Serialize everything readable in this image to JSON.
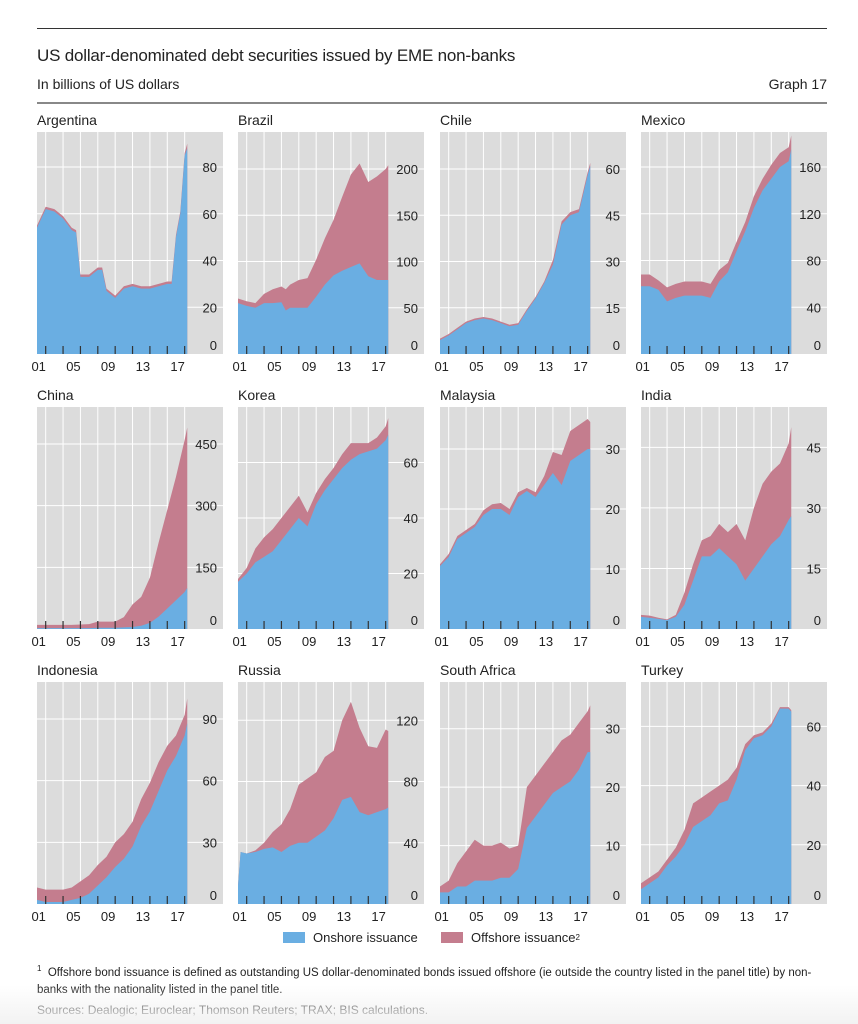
{
  "header": {
    "title": "US dollar-denominated debt securities issued by EME non-banks",
    "subtitle": "In billions of US dollars",
    "graph_number": "Graph 17"
  },
  "legend": {
    "onshore_label": "Onshore issuance",
    "offshore_label": "Offshore issuance",
    "offshore_sup": "2"
  },
  "colors": {
    "onshore": "#6aaee2",
    "offshore": "#c47d8e",
    "plot_bg": "#dcdcdc",
    "grid": "#ffffff"
  },
  "footnote": {
    "marker": "1",
    "text": "Offshore bond issuance is defined as outstanding US dollar-denominated bonds issued offshore (ie outside the country listed in the panel title) by non-banks with the nationality listed in the panel title."
  },
  "sources": "Sources: Dealogic; Euroclear; Thomson Reuters; TRAX; BIS calculations.",
  "chart_data": [
    {
      "type": "area",
      "title": "Argentina",
      "xlabel": "",
      "ylabel": "",
      "x_tick_labels": [
        "01",
        "05",
        "09",
        "13",
        "17"
      ],
      "y_ticks": [
        0,
        20,
        40,
        60,
        80
      ],
      "ylim": [
        0,
        95
      ],
      "x": [
        2000,
        2001,
        2002,
        2003,
        2004,
        2004.5,
        2005,
        2006,
        2007,
        2007.5,
        2008,
        2009,
        2010,
        2011,
        2012,
        2013,
        2014,
        2015,
        2015.5,
        2016,
        2016.5,
        2017,
        2017.3
      ],
      "series": [
        {
          "name": "Onshore issuance",
          "values": [
            54,
            62,
            61,
            58,
            53,
            52,
            33,
            33,
            36,
            36,
            27,
            24,
            28,
            29,
            28,
            28,
            29,
            30,
            30,
            50,
            60,
            85,
            88
          ]
        },
        {
          "name": "Offshore issuance",
          "values": [
            1,
            1,
            1,
            1,
            1,
            1,
            1,
            1,
            1,
            1,
            1,
            1,
            1,
            1,
            1,
            1,
            1,
            1,
            1,
            1,
            1,
            1,
            2
          ]
        }
      ]
    },
    {
      "type": "area",
      "title": "Brazil",
      "xlabel": "",
      "ylabel": "",
      "x_tick_labels": [
        "01",
        "05",
        "09",
        "13",
        "17"
      ],
      "y_ticks": [
        0,
        50,
        100,
        150,
        200
      ],
      "ylim": [
        0,
        240
      ],
      "x": [
        2000,
        2001,
        2002,
        2003,
        2004,
        2005,
        2005.5,
        2006,
        2007,
        2008,
        2009,
        2010,
        2011,
        2012,
        2013,
        2014,
        2015,
        2016,
        2017,
        2017.3
      ],
      "series": [
        {
          "name": "Onshore issuance",
          "values": [
            55,
            52,
            50,
            55,
            55,
            56,
            47,
            50,
            50,
            50,
            62,
            75,
            85,
            90,
            94,
            98,
            84,
            80,
            80,
            80
          ]
        },
        {
          "name": "Offshore issuance",
          "values": [
            5,
            5,
            5,
            10,
            15,
            17,
            23,
            25,
            30,
            32,
            40,
            50,
            60,
            80,
            100,
            108,
            102,
            112,
            120,
            124
          ]
        }
      ]
    },
    {
      "type": "area",
      "title": "Chile",
      "xlabel": "",
      "ylabel": "",
      "x_tick_labels": [
        "01",
        "05",
        "09",
        "13",
        "17"
      ],
      "y_ticks": [
        0,
        15,
        30,
        45,
        60
      ],
      "ylim": [
        0,
        72
      ],
      "x": [
        2000,
        2001,
        2002,
        2003,
        2004,
        2005,
        2006,
        2007,
        2008,
        2009,
        2010,
        2011,
        2012,
        2013,
        2014,
        2015,
        2016,
        2017,
        2017.3
      ],
      "series": [
        {
          "name": "Onshore issuance",
          "values": [
            4.5,
            6,
            8,
            10,
            11,
            11.5,
            11,
            10,
            9,
            9.5,
            14,
            18,
            23,
            29,
            42,
            45,
            46,
            58,
            61
          ]
        },
        {
          "name": "Offshore issuance",
          "values": [
            0.5,
            0.5,
            0.5,
            0.5,
            0.5,
            0.5,
            0.5,
            0.5,
            0.5,
            0.5,
            0.5,
            0.5,
            0.5,
            1.5,
            1,
            1,
            1,
            1,
            1
          ]
        }
      ]
    },
    {
      "type": "area",
      "title": "Mexico",
      "xlabel": "",
      "ylabel": "",
      "x_tick_labels": [
        "01",
        "05",
        "09",
        "13",
        "17"
      ],
      "y_ticks": [
        0,
        40,
        80,
        120,
        160
      ],
      "ylim": [
        0,
        190
      ],
      "x": [
        2000,
        2001,
        2002,
        2003,
        2004,
        2005,
        2006,
        2007,
        2008,
        2009,
        2010,
        2011,
        2012,
        2013,
        2014,
        2015,
        2016,
        2017,
        2017.3
      ],
      "series": [
        {
          "name": "Onshore issuance",
          "values": [
            58,
            58,
            55,
            45,
            48,
            50,
            50,
            50,
            48,
            62,
            70,
            88,
            105,
            125,
            140,
            150,
            160,
            165,
            175
          ]
        },
        {
          "name": "Offshore issuance",
          "values": [
            10,
            10,
            8,
            12,
            12,
            12,
            12,
            12,
            12,
            10,
            8,
            8,
            8,
            10,
            10,
            12,
            12,
            12,
            12
          ]
        }
      ]
    },
    {
      "type": "area",
      "title": "China",
      "xlabel": "",
      "ylabel": "",
      "x_tick_labels": [
        "01",
        "05",
        "09",
        "13",
        "17"
      ],
      "y_ticks": [
        0,
        150,
        300,
        450
      ],
      "ylim": [
        0,
        540
      ],
      "x": [
        2000,
        2001,
        2002,
        2003,
        2004,
        2005,
        2006,
        2007,
        2008,
        2009,
        2010,
        2011,
        2012,
        2013,
        2014,
        2015,
        2016,
        2017,
        2017.3
      ],
      "series": [
        {
          "name": "Onshore issuance",
          "values": [
            2,
            2,
            2,
            2,
            2,
            2,
            2,
            3,
            3,
            3,
            4,
            5,
            8,
            15,
            30,
            50,
            70,
            90,
            100
          ]
        },
        {
          "name": "Offshore issuance",
          "values": [
            8,
            8,
            8,
            8,
            8,
            9,
            10,
            15,
            15,
            15,
            25,
            55,
            70,
            110,
            180,
            240,
            300,
            370,
            390
          ]
        }
      ]
    },
    {
      "type": "area",
      "title": "Korea",
      "xlabel": "",
      "ylabel": "",
      "x_tick_labels": [
        "01",
        "05",
        "09",
        "13",
        "17"
      ],
      "y_ticks": [
        0,
        20,
        40,
        60
      ],
      "ylim": [
        0,
        80
      ],
      "x": [
        2000,
        2001,
        2002,
        2003,
        2004,
        2005,
        2006,
        2007,
        2008,
        2009,
        2010,
        2011,
        2012,
        2013,
        2014,
        2015,
        2016,
        2017,
        2017.3
      ],
      "series": [
        {
          "name": "Onshore issuance",
          "values": [
            17,
            20,
            24,
            26,
            28,
            32,
            36,
            40,
            37,
            45,
            50,
            54,
            58,
            61,
            63,
            64,
            65,
            68,
            70
          ]
        },
        {
          "name": "Offshore issuance",
          "values": [
            1,
            2,
            5,
            7,
            8,
            8,
            8,
            8,
            5,
            4,
            4,
            4,
            5,
            6,
            4,
            3,
            4,
            5,
            6
          ]
        }
      ]
    },
    {
      "type": "area",
      "title": "Malaysia",
      "xlabel": "",
      "ylabel": "",
      "x_tick_labels": [
        "01",
        "05",
        "09",
        "13",
        "17"
      ],
      "y_ticks": [
        0,
        10,
        20,
        30
      ],
      "ylim": [
        0,
        37
      ],
      "x": [
        2000,
        2001,
        2002,
        2003,
        2004,
        2005,
        2006,
        2007,
        2008,
        2009,
        2010,
        2011,
        2012,
        2013,
        2014,
        2015,
        2016,
        2017,
        2017.3
      ],
      "series": [
        {
          "name": "Onshore issuance",
          "values": [
            10.5,
            12,
            15,
            16,
            17,
            19,
            20,
            20,
            19,
            22,
            23,
            22,
            24,
            26,
            24,
            28,
            29,
            30,
            30
          ]
        },
        {
          "name": "Offshore issuance",
          "values": [
            0.3,
            0.5,
            0.5,
            0.5,
            0.5,
            0.8,
            0.8,
            1,
            1,
            0.8,
            0.5,
            0.8,
            1.5,
            3.5,
            5,
            5,
            5,
            5,
            4.5
          ]
        }
      ]
    },
    {
      "type": "area",
      "title": "India",
      "xlabel": "",
      "ylabel": "",
      "x_tick_labels": [
        "01",
        "05",
        "09",
        "13",
        "17"
      ],
      "y_ticks": [
        0,
        15,
        30,
        45
      ],
      "ylim": [
        0,
        55
      ],
      "x": [
        2000,
        2001,
        2002,
        2003,
        2004,
        2005,
        2006,
        2007,
        2008,
        2009,
        2010,
        2011,
        2012,
        2013,
        2014,
        2015,
        2016,
        2017,
        2017.3
      ],
      "series": [
        {
          "name": "Onshore issuance",
          "values": [
            3,
            2.8,
            2.5,
            2.2,
            3,
            6,
            12,
            18,
            18,
            20,
            18,
            16,
            12,
            15,
            18,
            21,
            23,
            27,
            28
          ]
        },
        {
          "name": "Offshore issuance",
          "values": [
            0.5,
            0.5,
            0.3,
            0.2,
            0.5,
            3,
            4,
            4,
            5,
            6,
            6,
            10,
            10,
            15,
            18,
            18,
            18,
            19,
            22
          ]
        }
      ]
    },
    {
      "type": "area",
      "title": "Indonesia",
      "xlabel": "",
      "ylabel": "",
      "x_tick_labels": [
        "01",
        "05",
        "09",
        "13",
        "17"
      ],
      "y_ticks": [
        0,
        30,
        60,
        90
      ],
      "ylim": [
        0,
        108
      ],
      "x": [
        2000,
        2001,
        2002,
        2003,
        2004,
        2005,
        2006,
        2007,
        2008,
        2009,
        2010,
        2011,
        2012,
        2013,
        2014,
        2015,
        2016,
        2017,
        2017.3
      ],
      "series": [
        {
          "name": "Onshore issuance",
          "values": [
            2,
            1,
            1,
            1,
            2,
            3,
            5,
            9,
            13,
            18,
            22,
            28,
            38,
            45,
            55,
            65,
            72,
            82,
            88
          ]
        },
        {
          "name": "Offshore issuance",
          "values": [
            6,
            6,
            6,
            6,
            6,
            8,
            9,
            10,
            10,
            12,
            12,
            12,
            13,
            14,
            14,
            12,
            10,
            10,
            12
          ]
        }
      ]
    },
    {
      "type": "area",
      "title": "Russia",
      "xlabel": "",
      "ylabel": "",
      "x_tick_labels": [
        "01",
        "05",
        "09",
        "13",
        "17"
      ],
      "y_ticks": [
        0,
        40,
        80,
        120
      ],
      "ylim": [
        0,
        145
      ],
      "x": [
        2000,
        2000.3,
        2001,
        2002,
        2003,
        2004,
        2005,
        2006,
        2007,
        2008,
        2009,
        2010,
        2011,
        2012,
        2013,
        2014,
        2015,
        2016,
        2017,
        2017.3
      ],
      "series": [
        {
          "name": "Onshore issuance",
          "values": [
            12,
            34,
            33,
            34,
            36,
            37,
            34,
            38,
            40,
            40,
            44,
            48,
            56,
            68,
            70,
            60,
            58,
            60,
            62,
            63
          ]
        },
        {
          "name": "Offshore issuance",
          "values": [
            0,
            0,
            0,
            1,
            4,
            10,
            18,
            24,
            38,
            42,
            42,
            48,
            44,
            52,
            62,
            55,
            45,
            42,
            52,
            50
          ]
        }
      ]
    },
    {
      "type": "area",
      "title": "South Africa",
      "xlabel": "",
      "ylabel": "",
      "x_tick_labels": [
        "01",
        "05",
        "09",
        "13",
        "17"
      ],
      "y_ticks": [
        0,
        10,
        20,
        30
      ],
      "ylim": [
        0,
        38
      ],
      "x": [
        2000,
        2001,
        2002,
        2003,
        2004,
        2005,
        2006,
        2007,
        2008,
        2009,
        2010,
        2011,
        2012,
        2013,
        2014,
        2015,
        2016,
        2017,
        2017.3
      ],
      "series": [
        {
          "name": "Onshore issuance",
          "values": [
            2,
            2,
            3,
            3,
            4,
            4,
            4,
            4.5,
            4.5,
            6,
            13,
            15,
            17,
            19,
            20,
            21,
            23,
            26,
            26
          ]
        },
        {
          "name": "Offshore issuance",
          "values": [
            1,
            2,
            4,
            6,
            7,
            6,
            6,
            6,
            5,
            4,
            7,
            7,
            7,
            7,
            8,
            8,
            8,
            7,
            8
          ]
        }
      ]
    },
    {
      "type": "area",
      "title": "Turkey",
      "xlabel": "",
      "ylabel": "",
      "x_tick_labels": [
        "01",
        "05",
        "09",
        "13",
        "17"
      ],
      "y_ticks": [
        0,
        20,
        40,
        60
      ],
      "ylim": [
        0,
        75
      ],
      "x": [
        2000,
        2001,
        2002,
        2003,
        2004,
        2005,
        2006,
        2007,
        2008,
        2009,
        2010,
        2011,
        2012,
        2013,
        2014,
        2015,
        2016,
        2017,
        2017.3
      ],
      "series": [
        {
          "name": "Onshore issuance",
          "values": [
            5,
            7,
            9,
            13,
            16,
            20,
            26,
            28,
            30,
            34,
            35,
            42,
            52,
            56,
            57,
            60,
            66,
            66,
            65
          ]
        },
        {
          "name": "Offshore issuance",
          "values": [
            2,
            2,
            2,
            2,
            3,
            5,
            8,
            8,
            8,
            6,
            7,
            4,
            2,
            1,
            1,
            1,
            0.5,
            0.5,
            0.5
          ]
        }
      ]
    }
  ]
}
